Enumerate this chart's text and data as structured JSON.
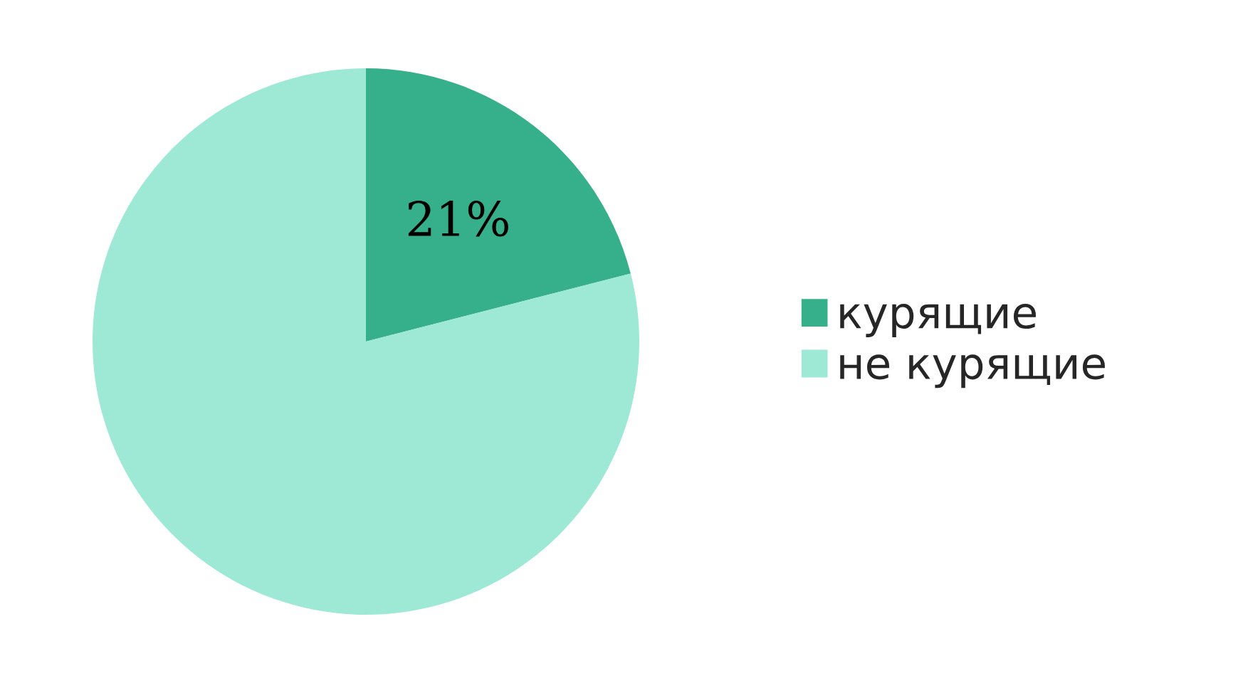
{
  "chart_data": {
    "type": "pie",
    "categories": [
      "курящие",
      "не курящие"
    ],
    "values": [
      21,
      79
    ],
    "colors": [
      "#36b08a",
      "#9ee9d6"
    ],
    "value_labels": [
      "21%",
      null
    ],
    "legend": "right"
  }
}
